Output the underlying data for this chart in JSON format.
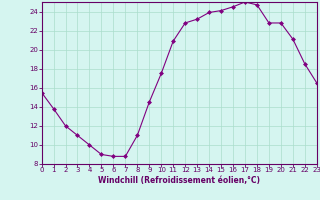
{
  "x": [
    0,
    1,
    2,
    3,
    4,
    5,
    6,
    7,
    8,
    9,
    10,
    11,
    12,
    13,
    14,
    15,
    16,
    17,
    18,
    19,
    20,
    21,
    22,
    23
  ],
  "y": [
    15.5,
    13.8,
    12.0,
    11.0,
    10.0,
    9.0,
    8.8,
    8.8,
    11.0,
    14.5,
    17.5,
    20.9,
    22.8,
    23.2,
    23.9,
    24.1,
    24.5,
    25.0,
    24.7,
    22.8,
    22.8,
    21.1,
    18.5,
    16.5
  ],
  "xlim": [
    0,
    23
  ],
  "ylim": [
    8,
    25
  ],
  "yticks": [
    8,
    10,
    12,
    14,
    16,
    18,
    20,
    22,
    24
  ],
  "xticks": [
    0,
    1,
    2,
    3,
    4,
    5,
    6,
    7,
    8,
    9,
    10,
    11,
    12,
    13,
    14,
    15,
    16,
    17,
    18,
    19,
    20,
    21,
    22,
    23
  ],
  "xlabel": "Windchill (Refroidissement éolien,°C)",
  "line_color": "#800080",
  "marker_color": "#800080",
  "bg_color": "#d5f5f0",
  "grid_color": "#aaddcc",
  "axis_color": "#660066",
  "spine_color": "#660066"
}
